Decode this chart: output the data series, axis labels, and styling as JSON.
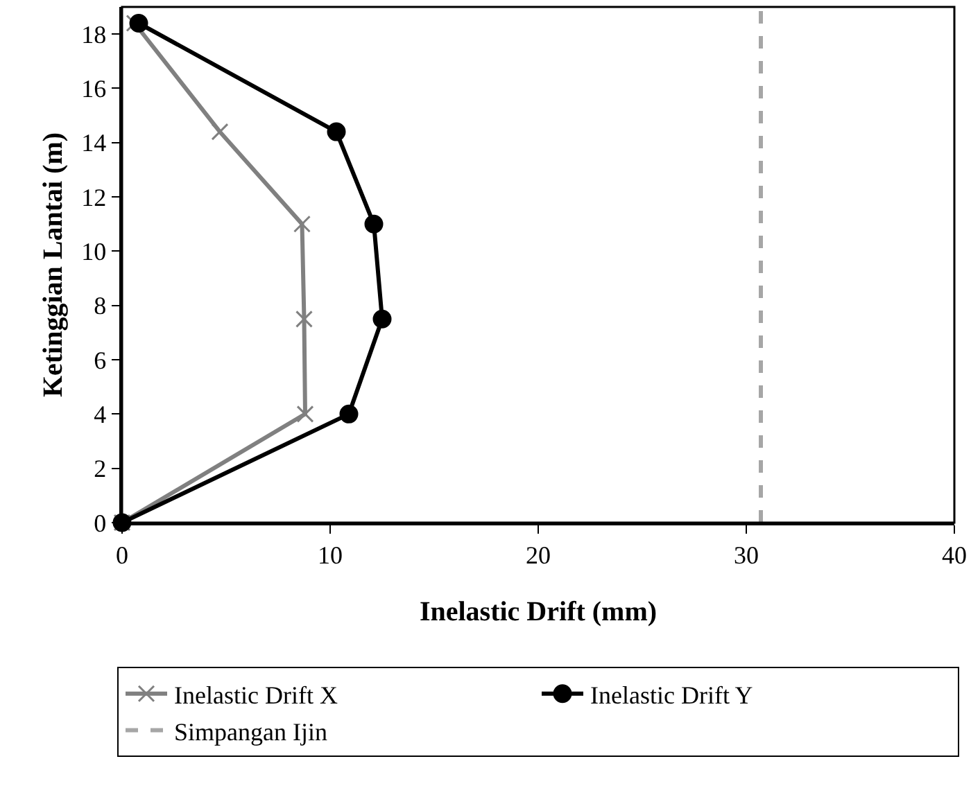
{
  "chart_data": {
    "type": "line",
    "xlabel": "Inelastic Drift (mm)",
    "ylabel": "Ketinggian Lantai (m)",
    "xlim": [
      0,
      40
    ],
    "xticks": [
      0,
      10,
      20,
      30,
      40
    ],
    "ylim": [
      0,
      19
    ],
    "yticks": [
      0,
      2,
      4,
      6,
      8,
      10,
      12,
      14,
      16,
      18
    ],
    "series": [
      {
        "name": "Inelastic Drift X",
        "color": "#808080",
        "marker": "cross",
        "x": [
          0,
          8.8,
          8.75,
          8.65,
          4.7,
          0.6
        ],
        "values": [
          0,
          4,
          7.5,
          11,
          14.4,
          18.4
        ]
      },
      {
        "name": "Inelastic Drift Y",
        "color": "#000000",
        "marker": "circle",
        "x": [
          0,
          10.9,
          12.5,
          12.1,
          10.3,
          0.8
        ],
        "values": [
          0,
          4,
          7.5,
          11,
          14.4,
          18.4
        ]
      },
      {
        "name": "Simpangan Ijin",
        "color": "#a6a6a6",
        "line_style": "dashed",
        "marker": "none",
        "x": [
          30.7,
          30.7
        ],
        "values": [
          0,
          19
        ]
      }
    ],
    "grid": false,
    "legend": "bottom"
  }
}
